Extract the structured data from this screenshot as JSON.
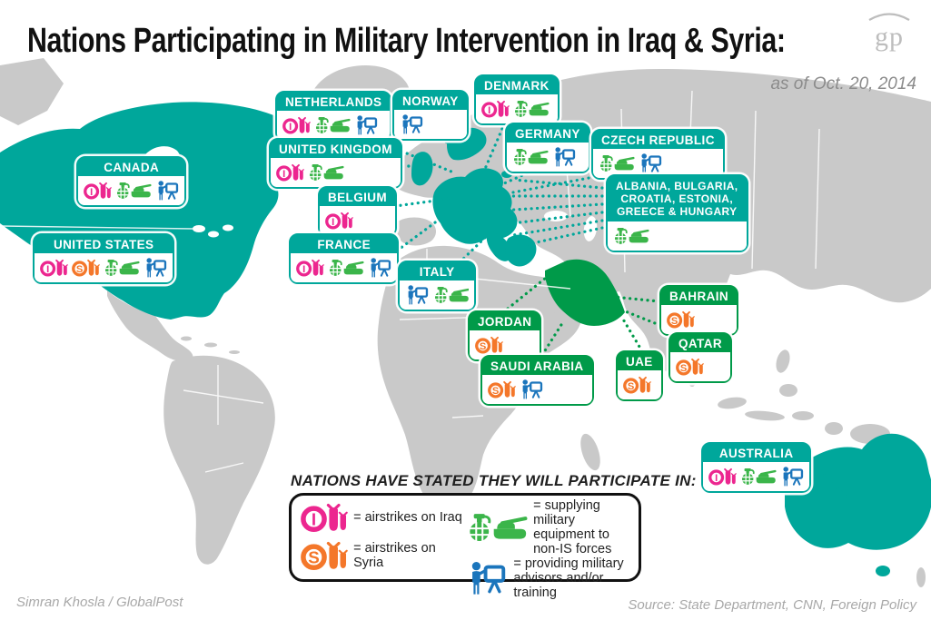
{
  "header": {
    "title": "Nations Participating in Military Intervention in Iraq & Syria:",
    "as_of": "as of Oct. 20, 2014",
    "logo_text": "gp"
  },
  "legend": {
    "heading": "NATIONS HAVE STATED THEY WILL PARTICIPATE IN:",
    "items": [
      {
        "icon": "airstrikes-iraq",
        "label": "= airstrikes on Iraq"
      },
      {
        "icon": "airstrikes-syria",
        "label": "= airstrikes on Syria"
      },
      {
        "icon": "military-equipment",
        "label": "= supplying military equipment to non-IS forces"
      },
      {
        "icon": "military-advisors",
        "label": "= providing military advisors and/or training"
      }
    ]
  },
  "countries": [
    {
      "name": "CANADA",
      "icons": [
        "airstrikes-iraq",
        "military-equipment",
        "military-advisors"
      ]
    },
    {
      "name": "UNITED STATES",
      "icons": [
        "airstrikes-iraq",
        "airstrikes-syria",
        "military-equipment",
        "military-advisors"
      ]
    },
    {
      "name": "NETHERLANDS",
      "icons": [
        "airstrikes-iraq",
        "military-equipment",
        "military-advisors"
      ]
    },
    {
      "name": "NORWAY",
      "icons": [
        "military-advisors"
      ]
    },
    {
      "name": "DENMARK",
      "icons": [
        "airstrikes-iraq",
        "military-equipment"
      ]
    },
    {
      "name": "GERMANY",
      "icons": [
        "military-equipment",
        "military-advisors"
      ]
    },
    {
      "name": "CZECH REPUBLIC",
      "icons": [
        "military-equipment",
        "military-advisors"
      ]
    },
    {
      "name": "UNITED KINGDOM",
      "icons": [
        "airstrikes-iraq",
        "military-equipment"
      ]
    },
    {
      "name": "BELGIUM",
      "icons": [
        "airstrikes-iraq"
      ]
    },
    {
      "name": "ALBANIA, BULGARIA,\nCROATIA, ESTONIA,\nGREECE & HUNGARY",
      "icons": [
        "military-equipment"
      ]
    },
    {
      "name": "FRANCE",
      "icons": [
        "airstrikes-iraq",
        "military-equipment",
        "military-advisors"
      ]
    },
    {
      "name": "ITALY",
      "icons": [
        "military-advisors",
        "military-equipment"
      ]
    },
    {
      "name": "JORDAN",
      "icons": [
        "airstrikes-syria"
      ]
    },
    {
      "name": "SAUDI ARABIA",
      "icons": [
        "airstrikes-syria",
        "military-advisors"
      ]
    },
    {
      "name": "BAHRAIN",
      "icons": [
        "airstrikes-syria"
      ]
    },
    {
      "name": "QATAR",
      "icons": [
        "airstrikes-syria"
      ]
    },
    {
      "name": "UAE",
      "icons": [
        "airstrikes-syria"
      ]
    },
    {
      "name": "AUSTRALIA",
      "icons": [
        "airstrikes-iraq",
        "military-equipment",
        "military-advisors"
      ]
    }
  ],
  "footer": {
    "credit": "Simran Khosla / GlobalPost",
    "source": "Source: State Department, CNN, Foreign Policy"
  },
  "colors": {
    "teal": "#00a79b",
    "gulf_green": "#009a49",
    "iraq_pink": "#ec268f",
    "syria_orange": "#f4772a",
    "equipment_green": "#3bb54a",
    "advisors_blue": "#1b75bc",
    "map_gray": "#c9c9c9"
  }
}
